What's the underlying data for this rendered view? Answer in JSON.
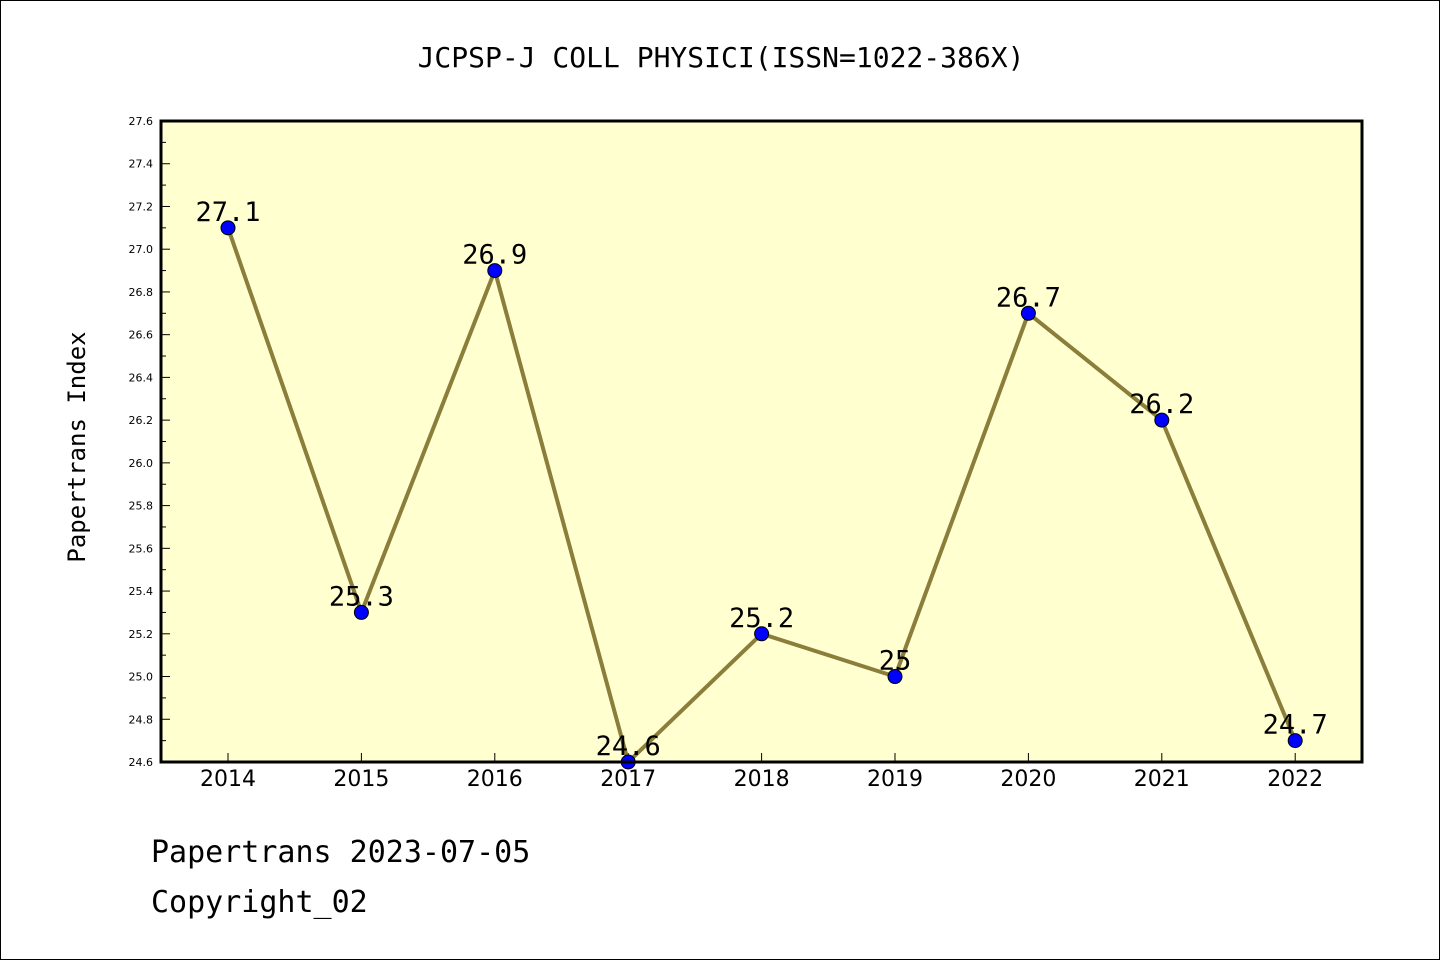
{
  "chart_data": {
    "type": "line",
    "title": "JCPSP-J COLL PHYSICI(ISSN=1022-386X)",
    "xlabel": "",
    "ylabel": "Papertrans Index",
    "categories": [
      "2014",
      "2015",
      "2016",
      "2017",
      "2018",
      "2019",
      "2020",
      "2021",
      "2022"
    ],
    "series": [
      {
        "values": [
          27.1,
          25.3,
          26.9,
          24.6,
          25.2,
          25.0,
          26.7,
          26.2,
          24.7
        ],
        "labels": [
          "27.1",
          "25.3",
          "26.9",
          "24.6",
          "25.2",
          "25",
          "26.7",
          "26.2",
          "24.7"
        ]
      }
    ],
    "ylim": [
      24.6,
      27.6
    ],
    "yticks": [
      "24.6",
      "24.8",
      "25.0",
      "25.2",
      "25.4",
      "25.6",
      "25.8",
      "26.0",
      "26.2",
      "26.4",
      "26.6",
      "26.8",
      "27.0",
      "27.2",
      "27.4",
      "27.6"
    ],
    "grid": false,
    "legend": "none",
    "colors": {
      "plot_background": "#ffffd0",
      "line": "#8b7d3a",
      "marker": "#0000ff"
    }
  },
  "footer": {
    "date_line": "Papertrans 2023-07-05",
    "copyright_line": "Copyright_02"
  }
}
